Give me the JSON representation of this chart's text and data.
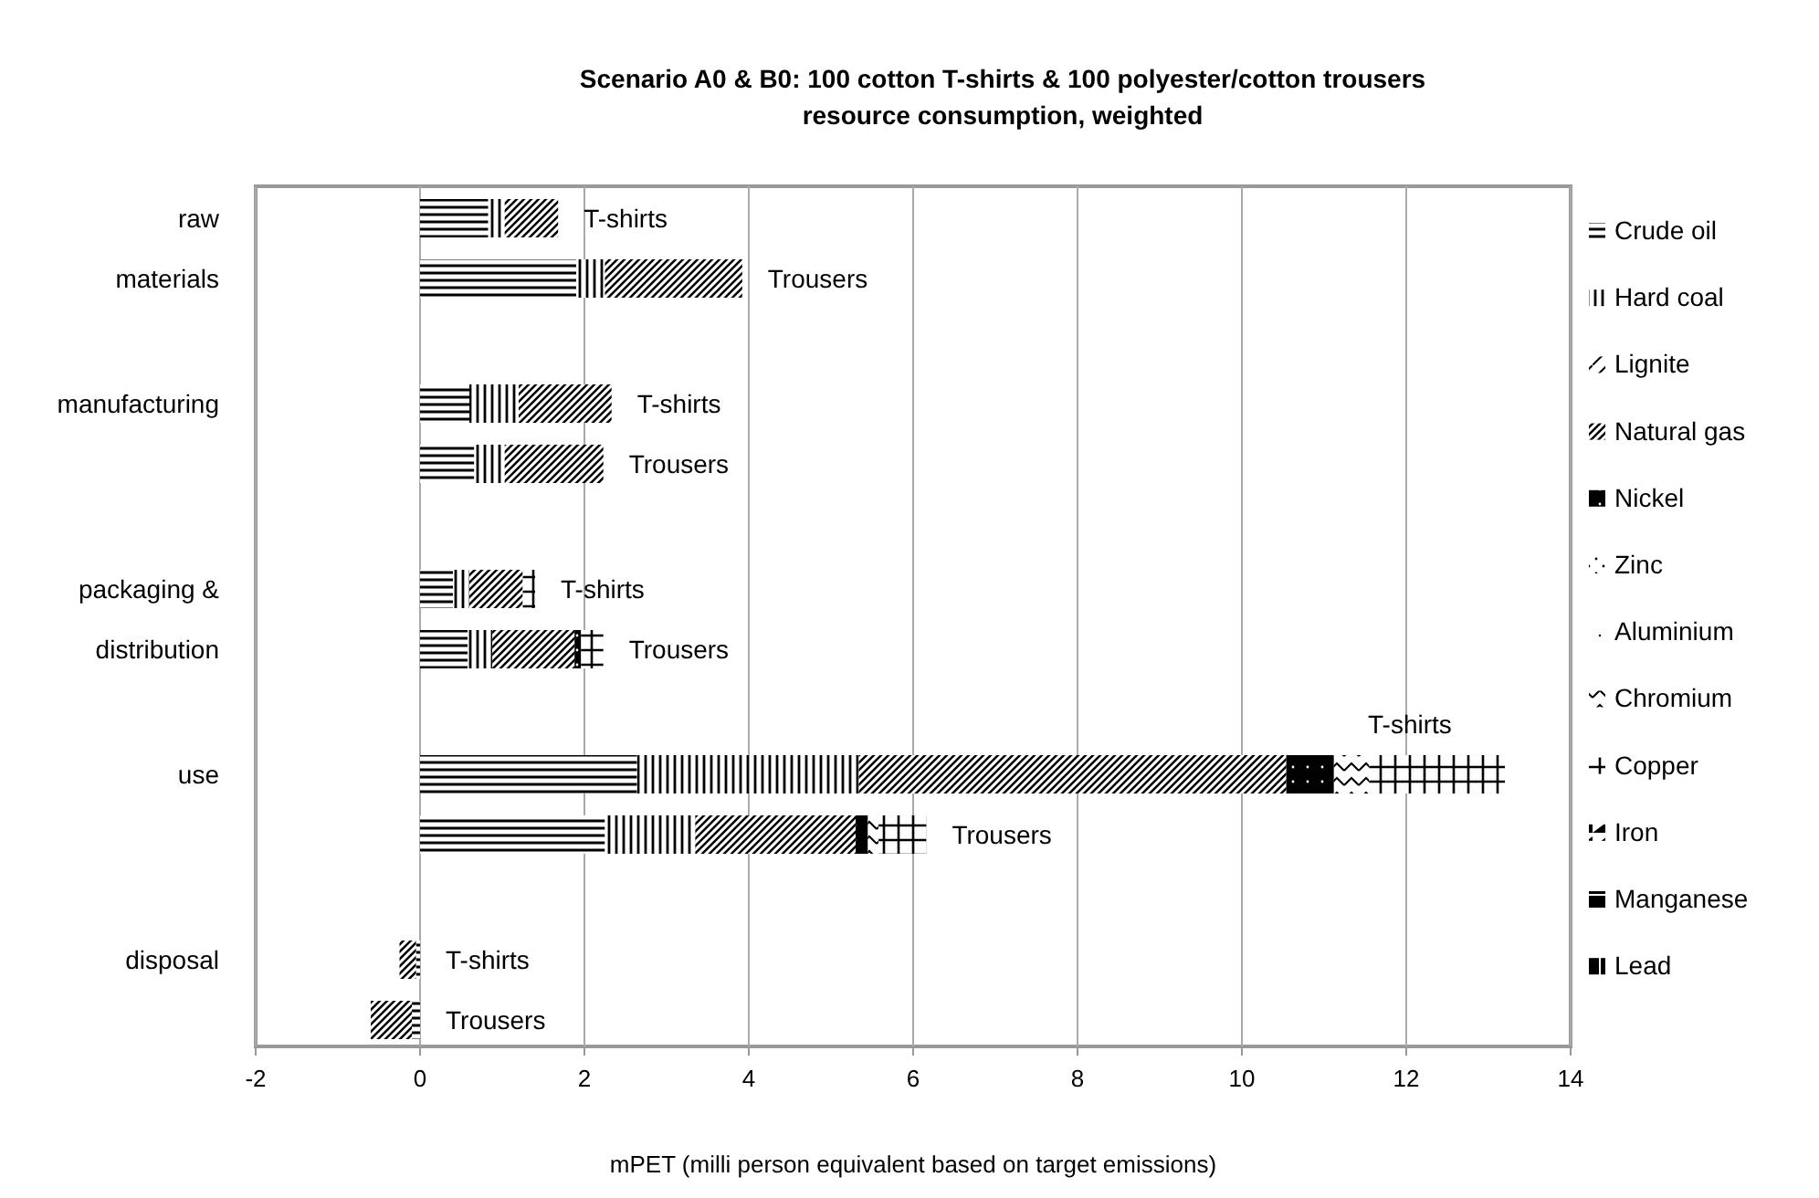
{
  "chart_data": {
    "type": "bar",
    "orientation": "horizontal",
    "stacked": true,
    "title": "Scenario A0 & B0: 100 cotton T-shirts & 100 polyester/cotton trousers",
    "subtitle": "resource consumption, weighted",
    "xlabel": "mPET (milli person equivalent based on target emissions)",
    "categories": [
      "raw",
      "materials",
      "manufacturing",
      null,
      "packaging &",
      "distribution",
      "use",
      null,
      "disposal",
      null
    ],
    "annotations": [
      "T-shirts",
      "Trousers",
      "T-shirts",
      "Trousers",
      "T-shirts",
      "Trousers",
      "T-shirts",
      "Trousers",
      "T-shirts",
      "Trousers"
    ],
    "series": [
      {
        "name": "Crude oil",
        "color": "#000000",
        "values": [
          0.83,
          1.9,
          0.6,
          0.66,
          0.4,
          0.58,
          2.64,
          2.25,
          -0.05,
          -0.1
        ]
      },
      {
        "name": "Hard coal",
        "color": "#000000",
        "values": [
          0.2,
          0.35,
          0.6,
          0.37,
          0.2,
          0.3,
          2.7,
          1.1,
          null,
          null
        ]
      },
      {
        "name": "Lignite",
        "color": "#000000",
        "values": [
          null,
          null,
          null,
          null,
          null,
          null,
          null,
          null,
          null,
          null
        ]
      },
      {
        "name": "Natural gas",
        "color": "#000000",
        "values": [
          0.65,
          1.67,
          1.13,
          1.2,
          0.65,
          1.0,
          5.2,
          1.95,
          -0.2,
          -0.5
        ]
      },
      {
        "name": "Nickel",
        "color": "#000000",
        "values": [
          null,
          null,
          null,
          null,
          null,
          0.08,
          0.58,
          0.15,
          null,
          null
        ]
      },
      {
        "name": "Zinc",
        "color": "#000000",
        "values": [
          null,
          null,
          null,
          null,
          null,
          null,
          null,
          null,
          null,
          null
        ]
      },
      {
        "name": "Aluminium",
        "color": "#000000",
        "values": [
          null,
          null,
          null,
          null,
          null,
          null,
          null,
          null,
          null,
          null
        ]
      },
      {
        "name": "Chromium",
        "color": "#000000",
        "values": [
          null,
          null,
          null,
          null,
          null,
          null,
          0.43,
          0.13,
          null,
          null
        ]
      },
      {
        "name": "Copper",
        "color": "#000000",
        "values": [
          null,
          null,
          null,
          null,
          0.15,
          0.27,
          1.65,
          0.58,
          null,
          null
        ]
      },
      {
        "name": "Iron",
        "color": "#000000",
        "values": [
          null,
          null,
          null,
          null,
          null,
          null,
          null,
          null,
          null,
          null
        ]
      },
      {
        "name": "Manganese",
        "color": "#000000",
        "values": [
          null,
          null,
          null,
          null,
          null,
          null,
          null,
          null,
          null,
          null
        ]
      },
      {
        "name": "Lead",
        "color": "#000000",
        "values": [
          null,
          null,
          null,
          null,
          null,
          null,
          null,
          null,
          null,
          null
        ]
      }
    ],
    "xlim": [
      -2,
      14
    ],
    "xticks": [
      -2,
      0,
      2,
      4,
      6,
      8,
      10,
      12,
      14
    ],
    "grid": "x",
    "legend": "right"
  }
}
